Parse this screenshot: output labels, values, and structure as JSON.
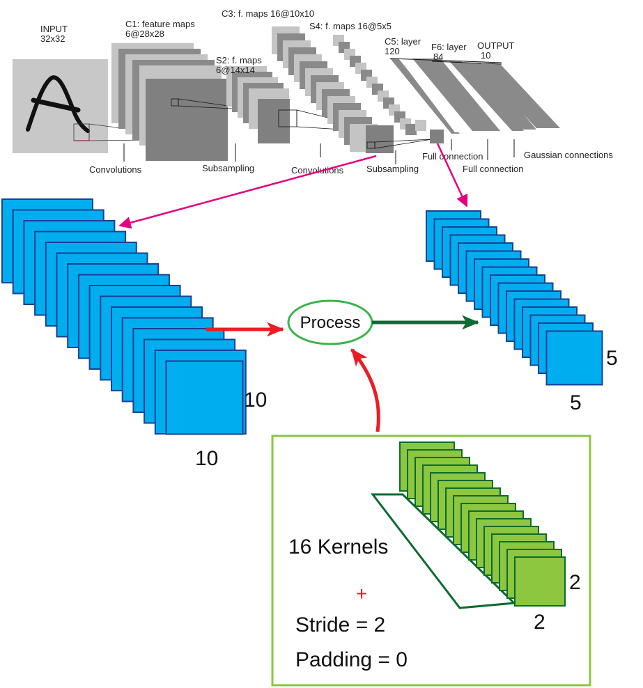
{
  "lenet": {
    "input_label": "INPUT",
    "input_size": "32x32",
    "c1_label": "C1: feature maps",
    "c1_size": "6@28x28",
    "s2_label": "S2: f. maps",
    "s2_size": "6@14x14",
    "c3_label": "C3: f. maps 16@10x10",
    "s4_label": "S4: f. maps 16@5x5",
    "c5_label": "C5: layer",
    "c5_size": "120",
    "f6_label": "F6: layer",
    "f6_size": "84",
    "output_label": "OUTPUT",
    "output_size": "10",
    "op_convolutions_1": "Convolutions",
    "op_subsampling_1": "Subsampling",
    "op_convolutions_2": "Convolutions",
    "op_subsampling_2": "Subsampling",
    "op_full_connection_1": "Full connection",
    "op_full_connection_2": "Full connection",
    "op_gaussian": "Gaussian connections"
  },
  "input_stack": {
    "width": "10",
    "height": "10",
    "count": 16
  },
  "output_stack": {
    "width": "5",
    "height": "5",
    "count": 16
  },
  "process_label": "Process",
  "kernel_box": {
    "kernels": "16 Kernels",
    "plus": "+",
    "stride": "Stride = 2",
    "padding": "Padding = 0",
    "kernel_width": "2",
    "kernel_height": "2",
    "count": 16
  },
  "colors": {
    "blue_fill": "#00aeef",
    "blue_stroke": "#1c3f94",
    "green_fill": "#8dc63f",
    "green_stroke": "#0b6b2e",
    "pink_arrow": "#e6007e",
    "red_arrow": "#ed1c24",
    "dark_green_arrow": "#0f6b35",
    "box_border": "#8dc63f"
  }
}
